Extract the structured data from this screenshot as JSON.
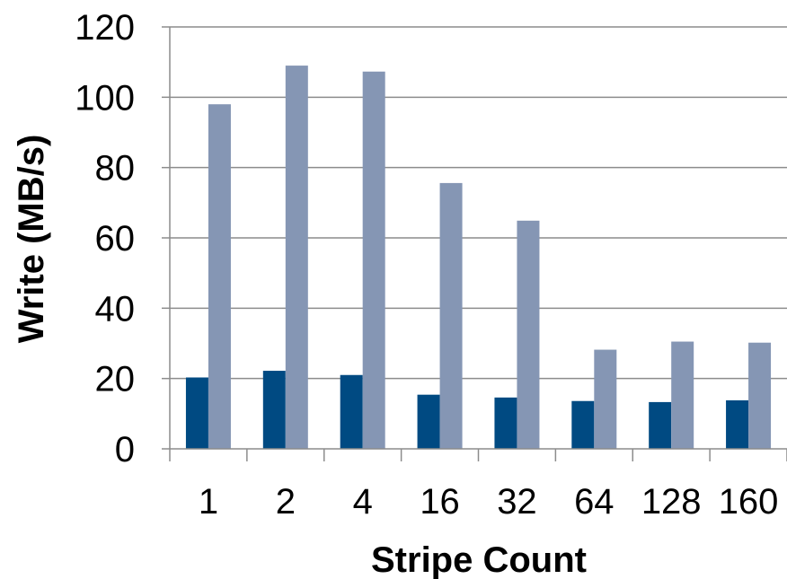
{
  "chart_data": {
    "type": "bar",
    "title": "",
    "xlabel": "Stripe Count",
    "ylabel": "Write (MB/s)",
    "categories": [
      "1",
      "2",
      "4",
      "16",
      "32",
      "64",
      "128",
      "160"
    ],
    "ylim": [
      0,
      120
    ],
    "yticks": [
      "0",
      "20",
      "40",
      "60",
      "80",
      "100",
      "120"
    ],
    "grid": true,
    "legend": "none",
    "series": [
      {
        "color": "#004a82",
        "values": [
          20.3,
          22.2,
          21.0,
          15.4,
          14.6,
          13.6,
          13.3,
          13.8
        ]
      },
      {
        "color": "#8596b4",
        "values": [
          98.0,
          109.0,
          107.3,
          75.6,
          64.9,
          28.2,
          30.5,
          30.2
        ]
      }
    ]
  }
}
